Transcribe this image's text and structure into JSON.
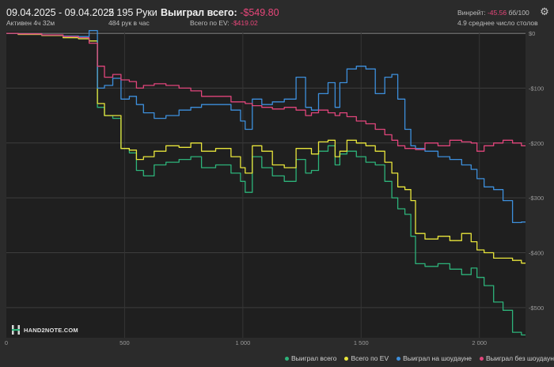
{
  "header": {
    "date_range": "09.04.2025 - 09.04.2025",
    "active": "Активен 4ч 32м",
    "hands": "2 195 Руки",
    "hands_per_hour": "484 рук в час",
    "won_label": "Выиграл всего:",
    "won_value": "-$549.80",
    "ev_label": "Всего по EV:",
    "ev_value": "-$419.02",
    "winrate_label": "Винрейт:",
    "winrate_value": "-45.56",
    "winrate_unit": "бб/100",
    "avg_tables": "4.9 среднее число столов",
    "gear_icon": "gear-icon"
  },
  "watermark": {
    "text": "HAND2NOTE.COM"
  },
  "legend": [
    {
      "label": "Выиграл всего",
      "color": "#2db37a"
    },
    {
      "label": "Всего по EV",
      "color": "#e8e53b"
    },
    {
      "label": "Выиграл на шоудауне",
      "color": "#3d8fdc"
    },
    {
      "label": "Выиграл без шоудауна",
      "color": "#e0457b"
    }
  ],
  "chart_data": {
    "type": "line",
    "x_ticks": [
      "0",
      "500",
      "1 000",
      "1 500",
      "2 000"
    ],
    "x_tick_values": [
      0,
      500,
      1000,
      1500,
      2000
    ],
    "y_ticks": [
      "$0",
      "-$100",
      "-$200",
      "-$300",
      "-$400",
      "-$500"
    ],
    "y_tick_values": [
      0,
      -100,
      -200,
      -300,
      -400,
      -500
    ],
    "xlim": [
      0,
      2195
    ],
    "ylim": [
      -555,
      3
    ],
    "grid": true,
    "series": [
      {
        "name": "Выиграл всего",
        "color": "#2db37a",
        "x": [
          0,
          100,
          200,
          280,
          330,
          370,
          400,
          430,
          470,
          500,
          540,
          560,
          600,
          650,
          700,
          760,
          800,
          850,
          920,
          980,
          1000,
          1020,
          1060,
          1100,
          1150,
          1200,
          1250,
          1280,
          1300,
          1340,
          1380,
          1400,
          1420,
          1460,
          1500,
          1540,
          1580,
          1620,
          1640,
          1670,
          1700,
          1720,
          1740,
          1800,
          1850,
          1900,
          1950,
          1980,
          2000,
          2040,
          2080,
          2120,
          2160,
          2195
        ],
        "y": [
          0,
          -2,
          -4,
          -8,
          -10,
          -14,
          -135,
          -150,
          -155,
          -210,
          -218,
          -250,
          -260,
          -240,
          -235,
          -230,
          -225,
          -245,
          -240,
          -255,
          -270,
          -290,
          -225,
          -245,
          -260,
          -270,
          -230,
          -255,
          -250,
          -215,
          -205,
          -240,
          -220,
          -215,
          -225,
          -235,
          -240,
          -270,
          -300,
          -320,
          -330,
          -370,
          -420,
          -425,
          -420,
          -430,
          -440,
          -428,
          -445,
          -460,
          -490,
          -505,
          -545,
          -550
        ]
      },
      {
        "name": "Всего по EV",
        "color": "#e8e53b",
        "x": [
          0,
          100,
          200,
          280,
          330,
          370,
          400,
          430,
          470,
          500,
          540,
          560,
          600,
          650,
          700,
          760,
          800,
          850,
          920,
          980,
          1000,
          1020,
          1060,
          1100,
          1150,
          1200,
          1250,
          1280,
          1300,
          1340,
          1380,
          1400,
          1420,
          1460,
          1500,
          1540,
          1580,
          1620,
          1640,
          1670,
          1700,
          1720,
          1740,
          1800,
          1850,
          1900,
          1950,
          1980,
          2000,
          2040,
          2080,
          2120,
          2160,
          2195
        ],
        "y": [
          0,
          -2,
          -4,
          -8,
          -10,
          -14,
          -128,
          -150,
          -150,
          -210,
          -213,
          -230,
          -225,
          -215,
          -205,
          -208,
          -200,
          -215,
          -210,
          -225,
          -245,
          -255,
          -205,
          -215,
          -240,
          -245,
          -210,
          -210,
          -220,
          -198,
          -195,
          -225,
          -215,
          -195,
          -200,
          -205,
          -215,
          -235,
          -255,
          -280,
          -285,
          -305,
          -365,
          -375,
          -370,
          -378,
          -365,
          -380,
          -395,
          -400,
          -410,
          -410,
          -414,
          -419
        ]
      },
      {
        "name": "Выиграл на шоудауне",
        "color": "#3d8fdc",
        "x": [
          0,
          100,
          200,
          280,
          330,
          370,
          400,
          430,
          470,
          500,
          540,
          560,
          600,
          650,
          700,
          760,
          800,
          850,
          920,
          980,
          1000,
          1020,
          1060,
          1100,
          1150,
          1200,
          1250,
          1280,
          1300,
          1340,
          1380,
          1400,
          1420,
          1460,
          1500,
          1540,
          1580,
          1620,
          1640,
          1670,
          1700,
          1720,
          1740,
          1800,
          1850,
          1900,
          1950,
          1980,
          2000,
          2040,
          2080,
          2120,
          2160,
          2195
        ],
        "y": [
          0,
          -1,
          -3,
          -5,
          -6,
          5,
          -100,
          -95,
          -82,
          -120,
          -115,
          -130,
          -145,
          -155,
          -150,
          -140,
          -135,
          -130,
          -130,
          -140,
          -160,
          -175,
          -120,
          -130,
          -125,
          -120,
          -80,
          -135,
          -140,
          -110,
          -90,
          -135,
          -90,
          -65,
          -60,
          -65,
          -110,
          -80,
          -75,
          -120,
          -175,
          -205,
          -210,
          -215,
          -225,
          -230,
          -240,
          -248,
          -265,
          -280,
          -285,
          -305,
          -345,
          -344
        ]
      },
      {
        "name": "Выиграл без шоудауна",
        "color": "#e0457b",
        "x": [
          0,
          100,
          200,
          280,
          330,
          370,
          400,
          430,
          470,
          500,
          540,
          560,
          600,
          650,
          700,
          760,
          800,
          850,
          920,
          980,
          1000,
          1020,
          1060,
          1100,
          1150,
          1200,
          1250,
          1280,
          1300,
          1340,
          1380,
          1400,
          1420,
          1460,
          1500,
          1540,
          1580,
          1620,
          1640,
          1670,
          1700,
          1720,
          1740,
          1800,
          1850,
          1900,
          1950,
          1980,
          2000,
          2040,
          2080,
          2120,
          2160,
          2195
        ],
        "y": [
          0,
          -1,
          -3,
          -6,
          -8,
          -18,
          -60,
          -80,
          -75,
          -85,
          -88,
          -100,
          -95,
          -92,
          -95,
          -100,
          -105,
          -115,
          -115,
          -125,
          -125,
          -128,
          -132,
          -135,
          -138,
          -135,
          -140,
          -150,
          -145,
          -140,
          -145,
          -150,
          -145,
          -152,
          -160,
          -165,
          -175,
          -185,
          -195,
          -205,
          -210,
          -210,
          -212,
          -200,
          -205,
          -195,
          -198,
          -200,
          -215,
          -205,
          -200,
          -195,
          -200,
          -205
        ]
      }
    ]
  }
}
